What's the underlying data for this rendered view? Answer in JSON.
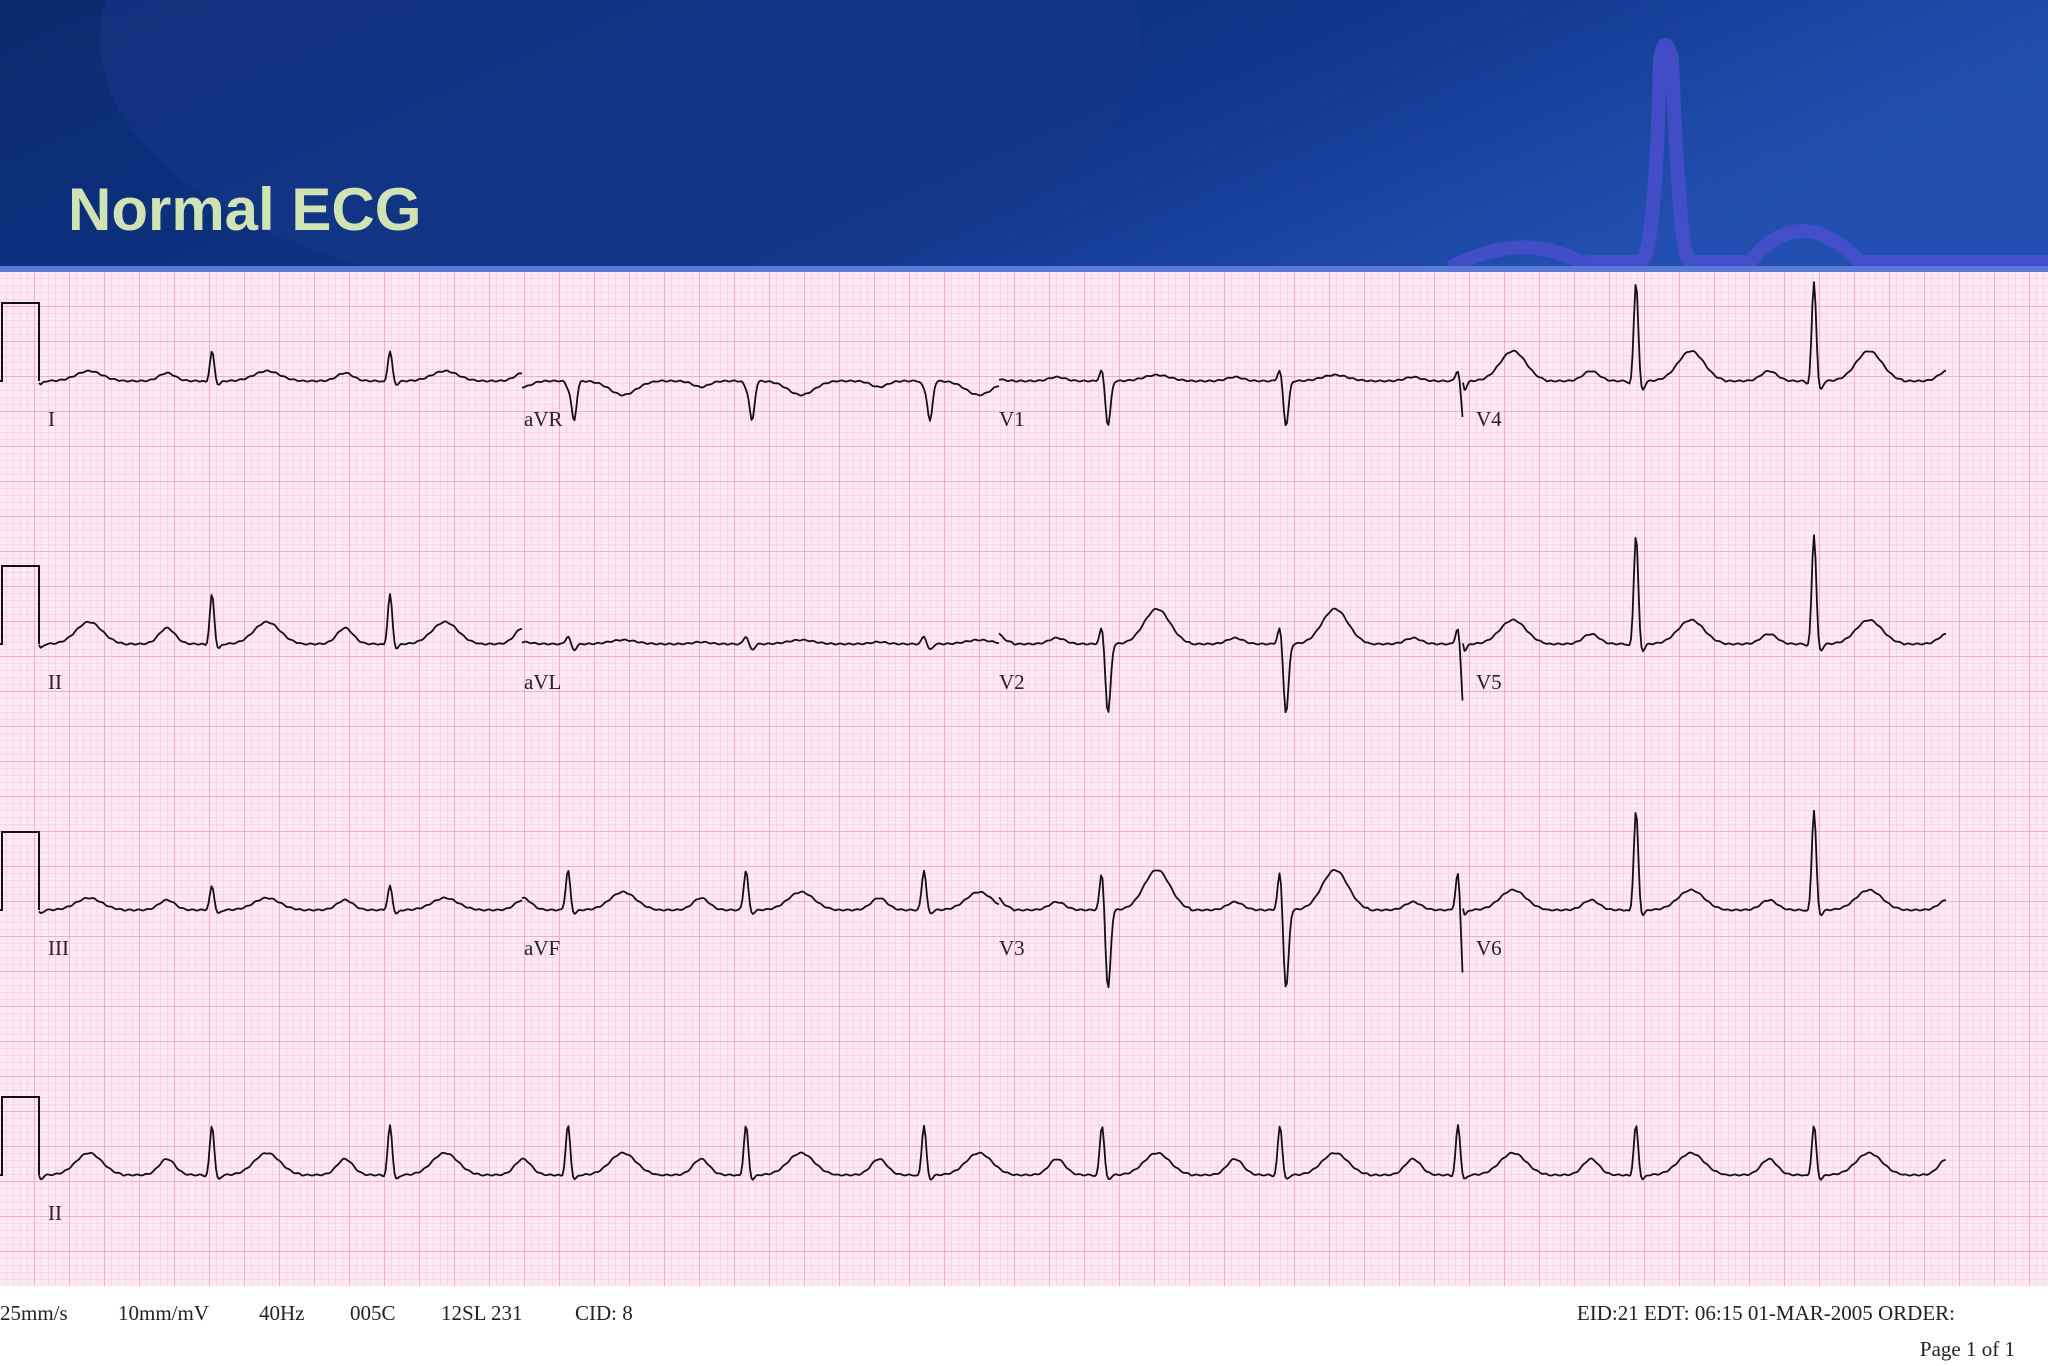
{
  "header": {
    "title": "Normal ECG"
  },
  "ecg": {
    "leads": [
      [
        "I",
        "aVR",
        "V1",
        "V4"
      ],
      [
        "II",
        "aVL",
        "V2",
        "V5"
      ],
      [
        "III",
        "aVF",
        "V3",
        "V6"
      ],
      [
        "II"
      ]
    ]
  },
  "footer": {
    "left": [
      "25mm/s",
      "10mm/mV",
      "40Hz",
      "005C",
      "12SL 231",
      "CID: 8"
    ],
    "right": [
      "EID:21 EDT: 06:15 01-MAR-2005 ORDER:",
      "Page 1 of 1"
    ]
  }
}
